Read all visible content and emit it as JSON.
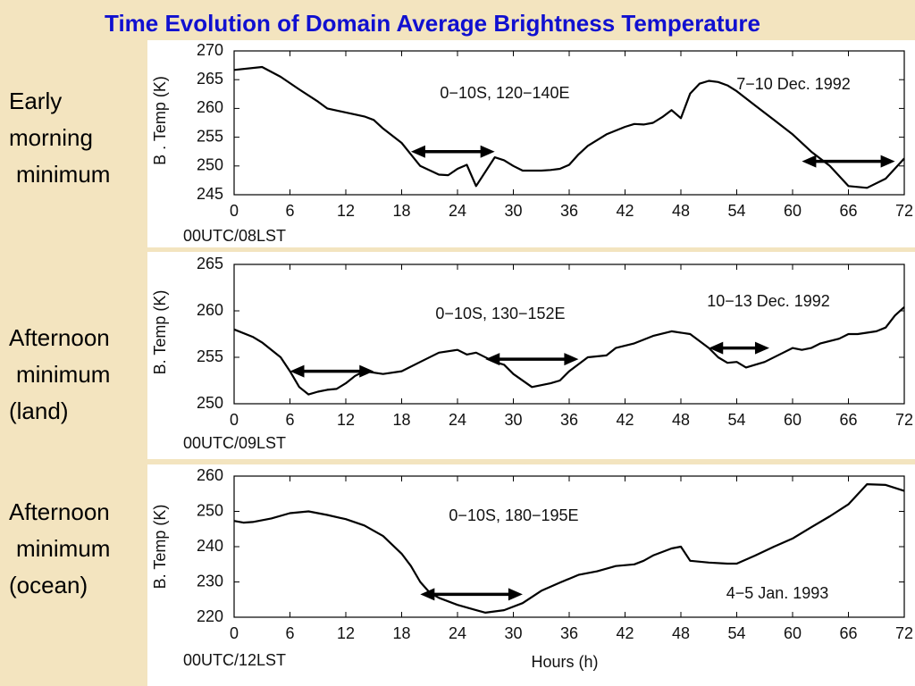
{
  "title": "Time Evolution of Domain Average Brightness Temperature",
  "row_labels": [
    [
      "Early",
      "morning",
      "minimum"
    ],
    [
      "Afternoon",
      "minimum",
      "(land)"
    ],
    [
      "Afternoon",
      "minimum",
      "(ocean)"
    ]
  ],
  "chart_data": [
    {
      "type": "line",
      "ylabel": "B . Temp (K)",
      "xsublabel": "00UTC/08LST",
      "annotations": [
        "0−10S, 120−140E",
        "7−10 Dec. 1992"
      ],
      "x": [
        0,
        3,
        5,
        7,
        9,
        10,
        12,
        14,
        15,
        16,
        18,
        19,
        20,
        22,
        23,
        24,
        25,
        26,
        28,
        29,
        30,
        31,
        33,
        34,
        35,
        36,
        37,
        38,
        40,
        42,
        43,
        44,
        45,
        46,
        47,
        48,
        49,
        50,
        51,
        52,
        53,
        54,
        56,
        58,
        60,
        62,
        64,
        66,
        68,
        70,
        72
      ],
      "series": [
        {
          "color": "#000000",
          "values": [
            266.7,
            267.2,
            265.5,
            263.3,
            261.2,
            260,
            259.3,
            258.6,
            258,
            256.5,
            254,
            252,
            250,
            248.5,
            248.4,
            249.5,
            250.2,
            246.5,
            251.5,
            251,
            250,
            249.2,
            249.2,
            249.3,
            249.5,
            250.2,
            252,
            253.5,
            255.5,
            256.8,
            257.3,
            257.2,
            257.5,
            258.5,
            259.7,
            258.3,
            262.6,
            264.3,
            264.8,
            264.6,
            264,
            263,
            260.5,
            258,
            255.5,
            252.5,
            250,
            246.5,
            246.2,
            247.8,
            251.3
          ]
        }
      ],
      "arrows": [
        {
          "x": [
            19,
            28
          ],
          "y": 252.5
        },
        {
          "x": [
            61,
            71
          ],
          "y": 250.8
        }
      ],
      "xlim": [
        0,
        72
      ],
      "xticks": [
        0,
        6,
        12,
        18,
        24,
        30,
        36,
        42,
        48,
        54,
        60,
        66,
        72
      ],
      "ylim": [
        245,
        270
      ],
      "yticks": [
        245,
        250,
        255,
        260,
        265,
        270
      ]
    },
    {
      "type": "line",
      "ylabel": "B. Temp (K)",
      "xsublabel": "00UTC/09LST",
      "annotations": [
        "0−10S, 130−152E",
        "10−13 Dec. 1992"
      ],
      "x": [
        0,
        2,
        3,
        5,
        6,
        7,
        8,
        9,
        10,
        11,
        12,
        13,
        14,
        16,
        18,
        20,
        22,
        24,
        25,
        26,
        28,
        29,
        30,
        32,
        34,
        35,
        36,
        38,
        40,
        41,
        43,
        45,
        47,
        49,
        51,
        52,
        53,
        54,
        55,
        56,
        57,
        59,
        60,
        61,
        62,
        63,
        65,
        66,
        67,
        69,
        70,
        71,
        72
      ],
      "series": [
        {
          "color": "#000000",
          "values": [
            258,
            257.2,
            256.6,
            255,
            253.5,
            251.8,
            251,
            251.3,
            251.5,
            251.6,
            252.2,
            253,
            253.5,
            253.2,
            253.5,
            254.5,
            255.5,
            255.8,
            255.3,
            255.5,
            254.5,
            254.2,
            253.2,
            251.8,
            252.2,
            252.5,
            253.5,
            255,
            255.2,
            256,
            256.5,
            257.3,
            257.8,
            257.5,
            256,
            255,
            254.4,
            254.5,
            253.9,
            254.2,
            254.5,
            255.5,
            256,
            255.8,
            256,
            256.5,
            257,
            257.5,
            257.5,
            257.8,
            258.2,
            259.5,
            260.4
          ]
        }
      ],
      "arrows": [
        {
          "x": [
            6,
            15
          ],
          "y": 253.5
        },
        {
          "x": [
            27,
            37
          ],
          "y": 254.8
        },
        {
          "x": [
            51,
            57.5
          ],
          "y": 256
        }
      ],
      "xlim": [
        0,
        72
      ],
      "xticks": [
        0,
        6,
        12,
        18,
        24,
        30,
        36,
        42,
        48,
        54,
        60,
        66,
        72
      ],
      "ylim": [
        250,
        265
      ],
      "yticks": [
        250,
        255,
        260,
        265
      ]
    },
    {
      "type": "line",
      "ylabel": "B. Temp (K)",
      "xsublabel": "00UTC/12LST",
      "xlabel": "Hours (h)",
      "annotations": [
        "0−10S, 180−195E",
        "4−5 Jan. 1993"
      ],
      "x": [
        0,
        1,
        2,
        4,
        6,
        8,
        10,
        12,
        14,
        16,
        18,
        19,
        20,
        21,
        22,
        24,
        26,
        27,
        29,
        31,
        33,
        35,
        37,
        39,
        41,
        43,
        44,
        45,
        47,
        48,
        49,
        51,
        53,
        54,
        56,
        58,
        60,
        62,
        64,
        66,
        68,
        70,
        72
      ],
      "series": [
        {
          "color": "#000000",
          "values": [
            247.3,
            246.8,
            247,
            248,
            249.5,
            250,
            249,
            247.8,
            246,
            243,
            238,
            234.5,
            230,
            227,
            225.5,
            223.5,
            222,
            221.3,
            222,
            224,
            227.5,
            229.8,
            232,
            233,
            234.5,
            235,
            236,
            237.5,
            239.5,
            240,
            236,
            235.5,
            235.2,
            235.2,
            237.5,
            240,
            242.3,
            245.5,
            248.6,
            252,
            257.7,
            257.5,
            255.8
          ]
        }
      ],
      "arrows": [
        {
          "x": [
            20,
            31
          ],
          "y": 226.5
        }
      ],
      "xlim": [
        0,
        72
      ],
      "xticks": [
        0,
        6,
        12,
        18,
        24,
        30,
        36,
        42,
        48,
        54,
        60,
        66,
        72
      ],
      "ylim": [
        220,
        260
      ],
      "yticks": [
        220,
        230,
        240,
        250,
        260
      ]
    }
  ]
}
